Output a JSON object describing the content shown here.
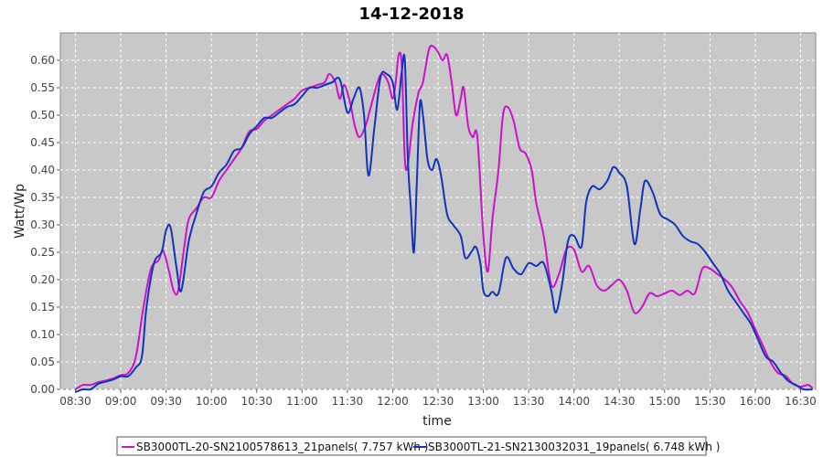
{
  "chart_data": {
    "type": "line",
    "title": "14-12-2018",
    "xlabel": "time",
    "ylabel": "Watt/Wp",
    "xlim": [
      "08:20",
      "16:40"
    ],
    "ylim": [
      0,
      0.65
    ],
    "x_ticks": [
      "08:30",
      "09:00",
      "09:30",
      "10:00",
      "10:30",
      "11:00",
      "11:30",
      "12:00",
      "12:30",
      "13:00",
      "13:30",
      "14:00",
      "14:30",
      "15:00",
      "15:30",
      "16:00",
      "16:30"
    ],
    "y_ticks": [
      "0.00",
      "0.05",
      "0.10",
      "0.15",
      "0.20",
      "0.25",
      "0.30",
      "0.35",
      "0.40",
      "0.45",
      "0.50",
      "0.55",
      "0.60"
    ],
    "grid": true,
    "legend_position": "bottom",
    "colors": {
      "plot_background": "#c8c8c8",
      "grid": "#ffffff"
    },
    "series": [
      {
        "name": "SB3000TL-20-SN2100578613_21panels( 7.757 kWh )",
        "color": "#cc11cc",
        "points": [
          [
            "08:30",
            0.0
          ],
          [
            "08:35",
            0.008
          ],
          [
            "08:40",
            0.008
          ],
          [
            "08:45",
            0.013
          ],
          [
            "08:50",
            0.016
          ],
          [
            "08:55",
            0.02
          ],
          [
            "09:00",
            0.026
          ],
          [
            "09:05",
            0.03
          ],
          [
            "09:10",
            0.06
          ],
          [
            "09:15",
            0.15
          ],
          [
            "09:20",
            0.22
          ],
          [
            "09:25",
            0.235
          ],
          [
            "09:28",
            0.253
          ],
          [
            "09:32",
            0.215
          ],
          [
            "09:35",
            0.18
          ],
          [
            "09:38",
            0.18
          ],
          [
            "09:42",
            0.26
          ],
          [
            "09:45",
            0.31
          ],
          [
            "09:50",
            0.33
          ],
          [
            "09:55",
            0.35
          ],
          [
            "10:00",
            0.35
          ],
          [
            "10:05",
            0.38
          ],
          [
            "10:10",
            0.4
          ],
          [
            "10:15",
            0.42
          ],
          [
            "10:20",
            0.44
          ],
          [
            "10:25",
            0.47
          ],
          [
            "10:30",
            0.475
          ],
          [
            "10:35",
            0.49
          ],
          [
            "10:40",
            0.5
          ],
          [
            "10:45",
            0.51
          ],
          [
            "10:50",
            0.52
          ],
          [
            "10:55",
            0.53
          ],
          [
            "11:00",
            0.545
          ],
          [
            "11:05",
            0.55
          ],
          [
            "11:10",
            0.555
          ],
          [
            "11:15",
            0.56
          ],
          [
            "11:18",
            0.575
          ],
          [
            "11:22",
            0.56
          ],
          [
            "11:25",
            0.53
          ],
          [
            "11:28",
            0.555
          ],
          [
            "11:32",
            0.52
          ],
          [
            "11:35",
            0.48
          ],
          [
            "11:38",
            0.46
          ],
          [
            "11:42",
            0.48
          ],
          [
            "11:45",
            0.51
          ],
          [
            "11:50",
            0.56
          ],
          [
            "11:53",
            0.575
          ],
          [
            "11:57",
            0.56
          ],
          [
            "12:00",
            0.53
          ],
          [
            "12:02",
            0.56
          ],
          [
            "12:04",
            0.61
          ],
          [
            "12:06",
            0.59
          ],
          [
            "12:08",
            0.42
          ],
          [
            "12:10",
            0.41
          ],
          [
            "12:13",
            0.48
          ],
          [
            "12:17",
            0.54
          ],
          [
            "12:20",
            0.56
          ],
          [
            "12:24",
            0.62
          ],
          [
            "12:27",
            0.625
          ],
          [
            "12:30",
            0.615
          ],
          [
            "12:33",
            0.6
          ],
          [
            "12:36",
            0.61
          ],
          [
            "12:39",
            0.56
          ],
          [
            "12:42",
            0.5
          ],
          [
            "12:45",
            0.53
          ],
          [
            "12:47",
            0.55
          ],
          [
            "12:50",
            0.48
          ],
          [
            "12:53",
            0.46
          ],
          [
            "12:56",
            0.46
          ],
          [
            "13:00",
            0.28
          ],
          [
            "13:03",
            0.215
          ],
          [
            "13:06",
            0.31
          ],
          [
            "13:10",
            0.4
          ],
          [
            "13:13",
            0.5
          ],
          [
            "13:16",
            0.515
          ],
          [
            "13:20",
            0.49
          ],
          [
            "13:24",
            0.44
          ],
          [
            "13:28",
            0.43
          ],
          [
            "13:32",
            0.4
          ],
          [
            "13:35",
            0.34
          ],
          [
            "13:40",
            0.28
          ],
          [
            "13:45",
            0.19
          ],
          [
            "13:50",
            0.21
          ],
          [
            "13:55",
            0.255
          ],
          [
            "14:00",
            0.255
          ],
          [
            "14:05",
            0.215
          ],
          [
            "14:10",
            0.225
          ],
          [
            "14:15",
            0.19
          ],
          [
            "14:20",
            0.18
          ],
          [
            "14:25",
            0.19
          ],
          [
            "14:30",
            0.2
          ],
          [
            "14:35",
            0.18
          ],
          [
            "14:40",
            0.14
          ],
          [
            "14:45",
            0.15
          ],
          [
            "14:50",
            0.175
          ],
          [
            "14:55",
            0.17
          ],
          [
            "15:00",
            0.175
          ],
          [
            "15:05",
            0.18
          ],
          [
            "15:10",
            0.172
          ],
          [
            "15:15",
            0.18
          ],
          [
            "15:20",
            0.175
          ],
          [
            "15:25",
            0.22
          ],
          [
            "15:30",
            0.22
          ],
          [
            "15:35",
            0.21
          ],
          [
            "15:40",
            0.2
          ],
          [
            "15:45",
            0.185
          ],
          [
            "15:50",
            0.16
          ],
          [
            "15:55",
            0.14
          ],
          [
            "16:00",
            0.11
          ],
          [
            "16:05",
            0.08
          ],
          [
            "16:10",
            0.05
          ],
          [
            "16:15",
            0.03
          ],
          [
            "16:20",
            0.025
          ],
          [
            "16:25",
            0.01
          ],
          [
            "16:30",
            0.005
          ],
          [
            "16:35",
            0.008
          ],
          [
            "16:38",
            0.002
          ]
        ]
      },
      {
        "name": "SB3000TL-21-SN2130032031_19panels( 6.748 kWh )",
        "color": "#1133bb",
        "points": [
          [
            "08:30",
            -0.005
          ],
          [
            "08:35",
            0.0
          ],
          [
            "08:40",
            0.0
          ],
          [
            "08:45",
            0.01
          ],
          [
            "08:50",
            0.014
          ],
          [
            "08:55",
            0.018
          ],
          [
            "09:00",
            0.024
          ],
          [
            "09:05",
            0.024
          ],
          [
            "09:10",
            0.04
          ],
          [
            "09:14",
            0.06
          ],
          [
            "09:17",
            0.15
          ],
          [
            "09:22",
            0.23
          ],
          [
            "09:27",
            0.25
          ],
          [
            "09:30",
            0.29
          ],
          [
            "09:33",
            0.295
          ],
          [
            "09:37",
            0.22
          ],
          [
            "09:40",
            0.18
          ],
          [
            "09:45",
            0.27
          ],
          [
            "09:50",
            0.32
          ],
          [
            "09:55",
            0.36
          ],
          [
            "10:00",
            0.37
          ],
          [
            "10:05",
            0.395
          ],
          [
            "10:10",
            0.41
          ],
          [
            "10:15",
            0.435
          ],
          [
            "10:20",
            0.44
          ],
          [
            "10:25",
            0.465
          ],
          [
            "10:30",
            0.48
          ],
          [
            "10:35",
            0.495
          ],
          [
            "10:40",
            0.495
          ],
          [
            "10:45",
            0.505
          ],
          [
            "10:50",
            0.515
          ],
          [
            "10:55",
            0.52
          ],
          [
            "11:00",
            0.535
          ],
          [
            "11:05",
            0.55
          ],
          [
            "11:10",
            0.55
          ],
          [
            "11:15",
            0.555
          ],
          [
            "11:20",
            0.56
          ],
          [
            "11:25",
            0.565
          ],
          [
            "11:30",
            0.505
          ],
          [
            "11:34",
            0.53
          ],
          [
            "11:38",
            0.55
          ],
          [
            "11:41",
            0.5
          ],
          [
            "11:44",
            0.39
          ],
          [
            "11:48",
            0.48
          ],
          [
            "11:52",
            0.57
          ],
          [
            "11:56",
            0.575
          ],
          [
            "12:00",
            0.56
          ],
          [
            "12:03",
            0.51
          ],
          [
            "12:06",
            0.58
          ],
          [
            "12:08",
            0.6
          ],
          [
            "12:10",
            0.42
          ],
          [
            "12:12",
            0.33
          ],
          [
            "12:14",
            0.25
          ],
          [
            "12:16",
            0.38
          ],
          [
            "12:18",
            0.52
          ],
          [
            "12:20",
            0.5
          ],
          [
            "12:23",
            0.42
          ],
          [
            "12:26",
            0.4
          ],
          [
            "12:29",
            0.42
          ],
          [
            "12:32",
            0.39
          ],
          [
            "12:36",
            0.32
          ],
          [
            "12:40",
            0.3
          ],
          [
            "12:45",
            0.28
          ],
          [
            "12:48",
            0.24
          ],
          [
            "12:52",
            0.25
          ],
          [
            "12:55",
            0.26
          ],
          [
            "12:58",
            0.23
          ],
          [
            "13:00",
            0.18
          ],
          [
            "13:03",
            0.17
          ],
          [
            "13:06",
            0.178
          ],
          [
            "13:10",
            0.175
          ],
          [
            "13:15",
            0.24
          ],
          [
            "13:20",
            0.22
          ],
          [
            "13:25",
            0.21
          ],
          [
            "13:30",
            0.23
          ],
          [
            "13:35",
            0.225
          ],
          [
            "13:40",
            0.23
          ],
          [
            "13:45",
            0.18
          ],
          [
            "13:48",
            0.14
          ],
          [
            "13:52",
            0.19
          ],
          [
            "13:56",
            0.27
          ],
          [
            "14:00",
            0.28
          ],
          [
            "14:05",
            0.26
          ],
          [
            "14:08",
            0.34
          ],
          [
            "14:12",
            0.37
          ],
          [
            "14:17",
            0.365
          ],
          [
            "14:22",
            0.38
          ],
          [
            "14:26",
            0.405
          ],
          [
            "14:30",
            0.395
          ],
          [
            "14:35",
            0.37
          ],
          [
            "14:40",
            0.265
          ],
          [
            "14:44",
            0.33
          ],
          [
            "14:47",
            0.38
          ],
          [
            "14:52",
            0.36
          ],
          [
            "14:57",
            0.32
          ],
          [
            "15:02",
            0.31
          ],
          [
            "15:07",
            0.3
          ],
          [
            "15:12",
            0.28
          ],
          [
            "15:17",
            0.27
          ],
          [
            "15:22",
            0.265
          ],
          [
            "15:27",
            0.25
          ],
          [
            "15:32",
            0.23
          ],
          [
            "15:37",
            0.21
          ],
          [
            "15:42",
            0.18
          ],
          [
            "15:47",
            0.16
          ],
          [
            "15:52",
            0.14
          ],
          [
            "15:57",
            0.12
          ],
          [
            "16:02",
            0.09
          ],
          [
            "16:07",
            0.06
          ],
          [
            "16:12",
            0.05
          ],
          [
            "16:17",
            0.03
          ],
          [
            "16:22",
            0.015
          ],
          [
            "16:27",
            0.008
          ],
          [
            "16:32",
            0.0
          ],
          [
            "16:38",
            0.0
          ]
        ]
      }
    ]
  }
}
